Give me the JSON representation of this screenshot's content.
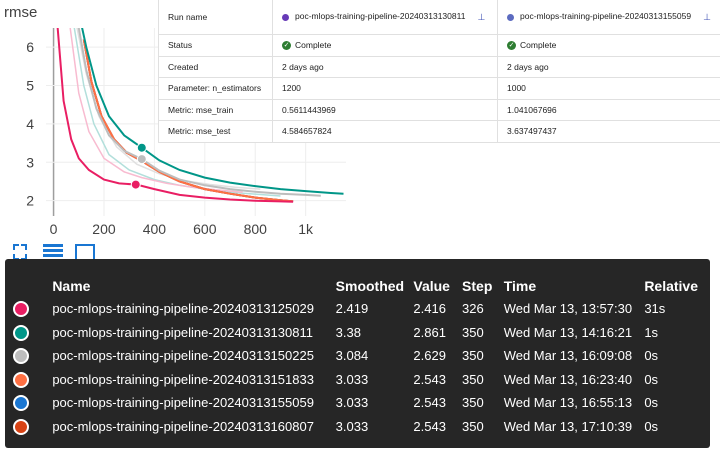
{
  "chart_data": {
    "type": "line",
    "ylabel": "rmse",
    "xlim": [
      -30,
      1160
    ],
    "ylim": [
      1.6,
      6.5
    ],
    "x_ticks": [
      "0",
      "200",
      "400",
      "600",
      "800",
      "1k"
    ],
    "x_tick_values": [
      0,
      200,
      400,
      600,
      800,
      1000
    ],
    "y_ticks": [
      "2",
      "3",
      "4",
      "5",
      "6"
    ],
    "y_tick_values": [
      2,
      3,
      4,
      5,
      6
    ],
    "grid": true,
    "series": [
      {
        "color": "#e91e63",
        "x": [
          10,
          40,
          70,
          100,
          140,
          200,
          260,
          330,
          400,
          500,
          600,
          700,
          800,
          900,
          950
        ],
        "y": [
          7.0,
          4.6,
          3.6,
          3.1,
          2.8,
          2.55,
          2.45,
          2.419,
          2.3,
          2.15,
          2.08,
          2.03,
          2.0,
          1.98,
          1.97
        ]
      },
      {
        "color": "#009688",
        "x": [
          100,
          130,
          170,
          220,
          280,
          350,
          420,
          500,
          600,
          700,
          800,
          900,
          1000,
          1100,
          1150
        ],
        "y": [
          6.9,
          6.0,
          5.0,
          4.2,
          3.7,
          3.38,
          3.05,
          2.8,
          2.6,
          2.47,
          2.38,
          2.3,
          2.25,
          2.2,
          2.18
        ]
      },
      {
        "color": "#bdbdbd",
        "x": [
          100,
          130,
          170,
          220,
          280,
          350,
          420,
          500,
          600,
          700,
          800,
          900,
          1000,
          1060
        ],
        "y": [
          6.5,
          5.4,
          4.4,
          3.7,
          3.3,
          3.084,
          2.78,
          2.55,
          2.4,
          2.3,
          2.23,
          2.18,
          2.15,
          2.13
        ]
      },
      {
        "color": "#ff7043",
        "x": [
          120,
          150,
          190,
          240,
          290,
          350,
          420,
          500,
          600,
          700,
          800,
          900,
          950
        ],
        "y": [
          6.2,
          5.1,
          4.2,
          3.6,
          3.25,
          3.033,
          2.75,
          2.5,
          2.3,
          2.18,
          2.08,
          2.01,
          1.98
        ]
      },
      {
        "color": "#1976d2",
        "x": [
          120,
          150,
          190,
          240,
          290,
          350,
          420,
          500,
          600,
          700,
          800,
          900,
          950
        ],
        "y": [
          6.2,
          5.1,
          4.2,
          3.6,
          3.25,
          3.033,
          2.75,
          2.5,
          2.3,
          2.18,
          2.08,
          2.01,
          1.98
        ]
      },
      {
        "color": "#d84315",
        "x": [
          120,
          150,
          190,
          240,
          290,
          350,
          420,
          500,
          600,
          700,
          800,
          900,
          950
        ],
        "y": [
          6.2,
          5.1,
          4.2,
          3.6,
          3.25,
          3.033,
          2.75,
          2.5,
          2.3,
          2.18,
          2.08,
          2.01,
          1.98
        ]
      }
    ],
    "faded_series": [
      {
        "color": "#b2dfdb",
        "x": [
          80,
          120,
          160,
          220,
          300,
          400,
          500,
          600,
          700,
          800,
          900
        ],
        "y": [
          6.6,
          5.0,
          4.0,
          3.2,
          2.8,
          2.55,
          2.4,
          2.3,
          2.22,
          2.17,
          2.12
        ]
      },
      {
        "color": "#f8bbd0",
        "x": [
          60,
          100,
          140,
          200,
          280,
          350,
          450,
          550,
          650,
          750
        ],
        "y": [
          6.8,
          4.8,
          3.8,
          3.1,
          2.75,
          2.6,
          2.45,
          2.35,
          2.28,
          2.22
        ]
      },
      {
        "color": "#e0e0e0",
        "x": [
          90,
          130,
          180,
          250,
          330,
          420,
          520,
          620,
          720,
          820
        ],
        "y": [
          6.6,
          5.3,
          4.2,
          3.4,
          2.95,
          2.7,
          2.52,
          2.42,
          2.35,
          2.3
        ]
      }
    ],
    "markers": [
      {
        "series": 0,
        "x": 326,
        "y": 2.419,
        "color": "#e91e63"
      },
      {
        "series": 1,
        "x": 350,
        "y": 3.38,
        "color": "#009688"
      },
      {
        "series": 2,
        "x": 350,
        "y": 3.084,
        "color": "#bdbdbd"
      }
    ]
  },
  "compare": {
    "header": [
      "Run name",
      "poc-mlops-training-pipeline-20240313130811",
      "poc-mlops-training-pipeline-20240313155059"
    ],
    "run_colors": [
      "#673ab7",
      "#5c6bc0"
    ],
    "rows": [
      [
        "Status",
        "Complete",
        "Complete"
      ],
      [
        "Created",
        "2 days ago",
        "2 days ago"
      ],
      [
        "Parameter: n_estimators",
        "1200",
        "1000"
      ],
      [
        "Metric: mse_train",
        "0.5611443969",
        "1.041067696"
      ],
      [
        "Metric: mse_test",
        "4.584657824",
        "3.637497437"
      ]
    ]
  },
  "tooltip": {
    "headers": [
      "",
      "Name",
      "Smoothed",
      "Value",
      "Step",
      "Time",
      "Relative"
    ],
    "rows": [
      {
        "color": "#e91e63",
        "name": "poc-mlops-training-pipeline-20240313125029",
        "smoothed": "2.419",
        "value": "2.416",
        "step": "326",
        "time": "Wed Mar 13, 13:57:30",
        "relative": "31s"
      },
      {
        "color": "#009688",
        "name": "poc-mlops-training-pipeline-20240313130811",
        "smoothed": "3.38",
        "value": "2.861",
        "step": "350",
        "time": "Wed Mar 13, 14:16:21",
        "relative": "1s"
      },
      {
        "color": "#bdbdbd",
        "name": "poc-mlops-training-pipeline-20240313150225",
        "smoothed": "3.084",
        "value": "2.629",
        "step": "350",
        "time": "Wed Mar 13, 16:09:08",
        "relative": "0s"
      },
      {
        "color": "#ff7043",
        "name": "poc-mlops-training-pipeline-20240313151833",
        "smoothed": "3.033",
        "value": "2.543",
        "step": "350",
        "time": "Wed Mar 13, 16:23:40",
        "relative": "0s"
      },
      {
        "color": "#1976d2",
        "name": "poc-mlops-training-pipeline-20240313155059",
        "smoothed": "3.033",
        "value": "2.543",
        "step": "350",
        "time": "Wed Mar 13, 16:55:13",
        "relative": "0s"
      },
      {
        "color": "#d84315",
        "name": "poc-mlops-training-pipeline-20240313160807",
        "smoothed": "3.033",
        "value": "2.543",
        "step": "350",
        "time": "Wed Mar 13, 17:10:39",
        "relative": "0s"
      }
    ]
  },
  "toolbar": {
    "icons": [
      "fullscreen-icon",
      "lines-icon",
      "fit-domain-icon"
    ]
  }
}
